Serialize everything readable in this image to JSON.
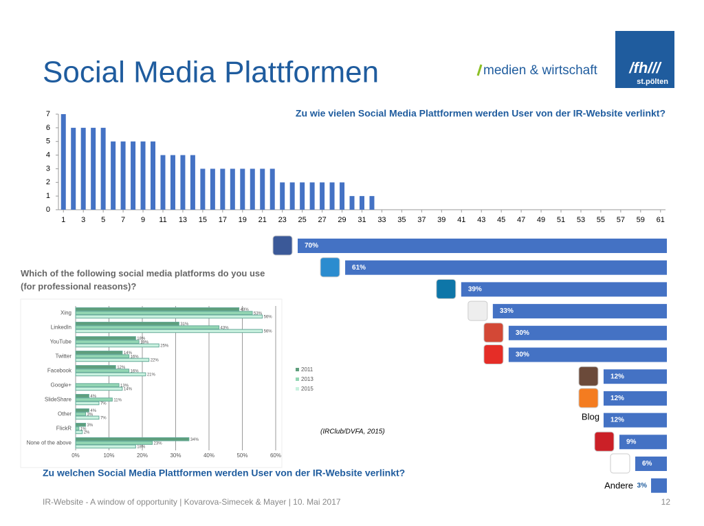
{
  "header": {
    "title": "Social Media Plattformen",
    "logo_text": "medien & wirtschaft",
    "logo_mark": "/fh///",
    "logo_sub": "st.pölten"
  },
  "footer": {
    "text": "IR-Website - A window of opportunity | Kovarova-Simecek & Mayer | 10. Mai 2017",
    "page": "12"
  },
  "source": "(IRClub/DVFA, 2015)",
  "chart_data": [
    {
      "type": "bar",
      "title": "Zu wie vielen Social Media Plattformen werden User von der IR-Website verlinkt?",
      "color": "#4472c4",
      "x": [
        1,
        2,
        3,
        4,
        5,
        6,
        7,
        8,
        9,
        10,
        11,
        12,
        13,
        14,
        15,
        16,
        17,
        18,
        19,
        20,
        21,
        22,
        23,
        24,
        25,
        26,
        27,
        28,
        29,
        30,
        31,
        32,
        33,
        34,
        35,
        36,
        37,
        38,
        39,
        40,
        41,
        42,
        43,
        44,
        45,
        46,
        47,
        48,
        49,
        50,
        51,
        52,
        53,
        54,
        55,
        56,
        57,
        58,
        59,
        60,
        61
      ],
      "values": [
        7,
        6,
        6,
        6,
        6,
        5,
        5,
        5,
        5,
        5,
        4,
        4,
        4,
        4,
        3,
        3,
        3,
        3,
        3,
        3,
        3,
        3,
        2,
        2,
        2,
        2,
        2,
        2,
        2,
        1,
        1,
        1,
        0,
        0,
        0,
        0,
        0,
        0,
        0,
        0,
        0,
        0,
        0,
        0,
        0,
        0,
        0,
        0,
        0,
        0,
        0,
        0,
        0,
        0,
        0,
        0,
        0,
        0,
        0,
        0,
        0
      ],
      "xlim": [
        0.5,
        61.5
      ],
      "xticks": [
        1,
        3,
        5,
        7,
        9,
        11,
        13,
        15,
        17,
        19,
        21,
        23,
        25,
        27,
        29,
        31,
        33,
        35,
        37,
        39,
        41,
        43,
        45,
        47,
        49,
        51,
        53,
        55,
        57,
        59,
        61
      ],
      "ylim": [
        0,
        7
      ],
      "yticks": [
        0,
        1,
        2,
        3,
        4,
        5,
        6,
        7
      ]
    },
    {
      "type": "barh",
      "title": "Zu welchen Social Media Plattformen werden User von der IR-Website verlinkt?",
      "color": "#4472c4",
      "categories": [
        null,
        null,
        null,
        null,
        null,
        null,
        null,
        null,
        "Blog",
        null,
        null,
        "Andere"
      ],
      "values": [
        70,
        61,
        39,
        33,
        30,
        30,
        12,
        12,
        12,
        9,
        6,
        3
      ],
      "value_labels": [
        "70%",
        "61%",
        "39%",
        "33%",
        "30%",
        "30%",
        "12%",
        "12%",
        "12%",
        "9%",
        "6%",
        "3%"
      ]
    },
    {
      "type": "grouped-barh",
      "title": "Which of the following social media platforms do you use (for professional reasons)?",
      "categories": [
        "Xing",
        "LinkedIn",
        "YouTube",
        "Twitter",
        "Facebook",
        "Google+",
        "SlideShare",
        "Other",
        "FlickR",
        "None of the above"
      ],
      "series": [
        {
          "name": "2011",
          "color": "#5e9e7c",
          "values": [
            49,
            31,
            18,
            14,
            12,
            null,
            4,
            4,
            3,
            34
          ],
          "value_labels": [
            "49%",
            "31%",
            "18%",
            "14%",
            "12%",
            null,
            "4%",
            "4%",
            "3%",
            "34%"
          ]
        },
        {
          "name": "2013",
          "color": "#93d6b3",
          "values": [
            53,
            43,
            19,
            16,
            16,
            13,
            11,
            3,
            1,
            23
          ],
          "value_labels": [
            "53%",
            "43%",
            "19%",
            "16%",
            "16%",
            "13%",
            "11%",
            "3%",
            "1%",
            "23%"
          ]
        },
        {
          "name": "2015",
          "color": "#c9f1df",
          "values": [
            56,
            56,
            25,
            22,
            21,
            14,
            7,
            7,
            2,
            18
          ],
          "value_labels": [
            "56%",
            "56%",
            "25%",
            "22%",
            "21%",
            "14%",
            "7%",
            "7%",
            "2%",
            "18%"
          ]
        }
      ],
      "xlim": [
        0,
        60
      ],
      "xticks": [
        {
          "value": 0,
          "label": "0%"
        },
        {
          "value": 10,
          "label": "10%"
        },
        {
          "value": 20,
          "label": "20%"
        },
        {
          "value": 30,
          "label": "30%"
        },
        {
          "value": 40,
          "label": "40%"
        },
        {
          "value": 50,
          "label": "50%"
        },
        {
          "value": 60,
          "label": "60%"
        }
      ],
      "grid": true
    }
  ]
}
